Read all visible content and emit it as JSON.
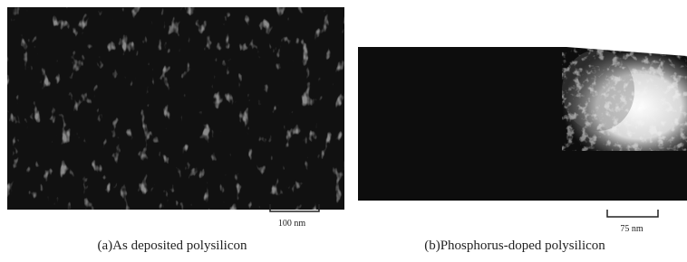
{
  "figure": {
    "panels": [
      {
        "scale_label": "100 nm",
        "caption": "(a)As deposited polysilicon"
      },
      {
        "scale_label": "75 nm",
        "caption": "(b)Phosphorus-doped polysilicon"
      }
    ]
  }
}
